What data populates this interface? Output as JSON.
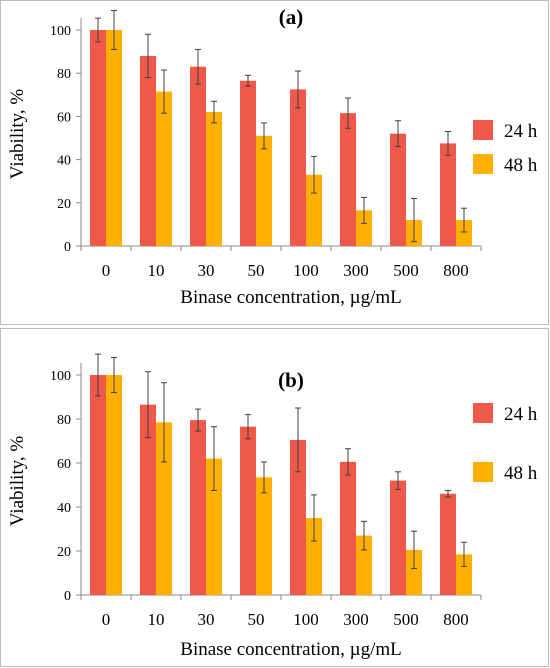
{
  "colors": {
    "series_24h": "#f0584a",
    "series_48h": "#ffb000",
    "error_bar": "#404040"
  },
  "chart_data": [
    {
      "type": "bar",
      "panel_label": "(a)",
      "xlabel": "Binase concentration, µg/mL",
      "ylabel": "Viability, %",
      "ylim": [
        0,
        100
      ],
      "yticks": [
        "0",
        "20",
        "40",
        "60",
        "80",
        "100"
      ],
      "categories": [
        "0",
        "10",
        "30",
        "50",
        "100",
        "300",
        "500",
        "800"
      ],
      "legend_position": "right",
      "grid": false,
      "series": [
        {
          "name": "24 h",
          "values": [
            100,
            88,
            83,
            76.5,
            72.5,
            61.5,
            52,
            47.5
          ],
          "errors": [
            5.5,
            10,
            8,
            2.5,
            8.5,
            7,
            6,
            5.5
          ]
        },
        {
          "name": "48 h",
          "values": [
            100,
            71.5,
            62,
            51,
            33,
            16.5,
            12,
            12
          ],
          "errors": [
            9,
            10,
            5,
            6,
            8.5,
            6,
            10,
            5.5
          ]
        }
      ]
    },
    {
      "type": "bar",
      "panel_label": "(b)",
      "xlabel": "Binase concentration, µg/mL",
      "ylabel": "Viability, %",
      "ylim": [
        0,
        100
      ],
      "yticks": [
        "0",
        "20",
        "40",
        "60",
        "80",
        "100"
      ],
      "categories": [
        "0",
        "10",
        "30",
        "50",
        "100",
        "300",
        "500",
        "800"
      ],
      "legend_position": "right",
      "grid": false,
      "series": [
        {
          "name": "24 h",
          "values": [
            100,
            86.5,
            79.5,
            76.5,
            70.5,
            60.5,
            52,
            46
          ],
          "errors": [
            9.5,
            15,
            5,
            5.5,
            14.5,
            6,
            4,
            1.5
          ]
        },
        {
          "name": "48 h",
          "values": [
            100,
            78.5,
            62,
            53.5,
            35,
            27,
            20.5,
            18.5
          ],
          "errors": [
            8,
            18,
            14.5,
            7,
            10.5,
            6.5,
            8.5,
            5.5
          ]
        }
      ]
    }
  ]
}
